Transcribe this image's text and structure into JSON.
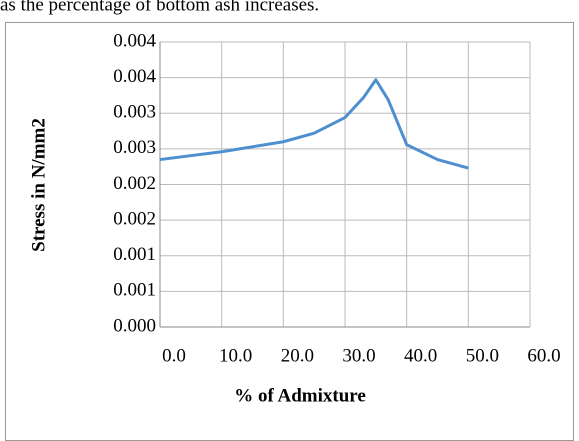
{
  "caption": "as the percentage of   bottom ash increases.",
  "chart_data": {
    "type": "line",
    "x": [
      0,
      10,
      20,
      25,
      30,
      33,
      35,
      37,
      40,
      45,
      50
    ],
    "series": [
      {
        "color": "#4f8fd0",
        "values": [
          0.00235,
          0.00246,
          0.0026,
          0.00272,
          0.00294,
          0.00322,
          0.00347,
          0.00319,
          0.00256,
          0.00235,
          0.00223
        ]
      }
    ],
    "xlabel": "% of Admixture",
    "ylabel": "Stress in N/mm2",
    "xlim": [
      0,
      60
    ],
    "ylim": [
      0,
      0.004
    ],
    "xticks": [
      {
        "value": 0,
        "label": "0.0"
      },
      {
        "value": 10,
        "label": "10.0"
      },
      {
        "value": 20,
        "label": "20.0"
      },
      {
        "value": 30,
        "label": "30.0"
      },
      {
        "value": 40,
        "label": "40.0"
      },
      {
        "value": 50,
        "label": "50.0"
      },
      {
        "value": 60,
        "label": "60.0"
      }
    ],
    "yticks": [
      {
        "value": 0,
        "label": "0.000"
      },
      {
        "value": 0.0005,
        "label": "0.001"
      },
      {
        "value": 0.001,
        "label": "0.001"
      },
      {
        "value": 0.0015,
        "label": "0.002"
      },
      {
        "value": 0.002,
        "label": "0.002"
      },
      {
        "value": 0.0025,
        "label": "0.003"
      },
      {
        "value": 0.003,
        "label": "0.003"
      },
      {
        "value": 0.0035,
        "label": "0.004"
      },
      {
        "value": 0.004,
        "label": "0.004"
      }
    ],
    "grid": true
  }
}
